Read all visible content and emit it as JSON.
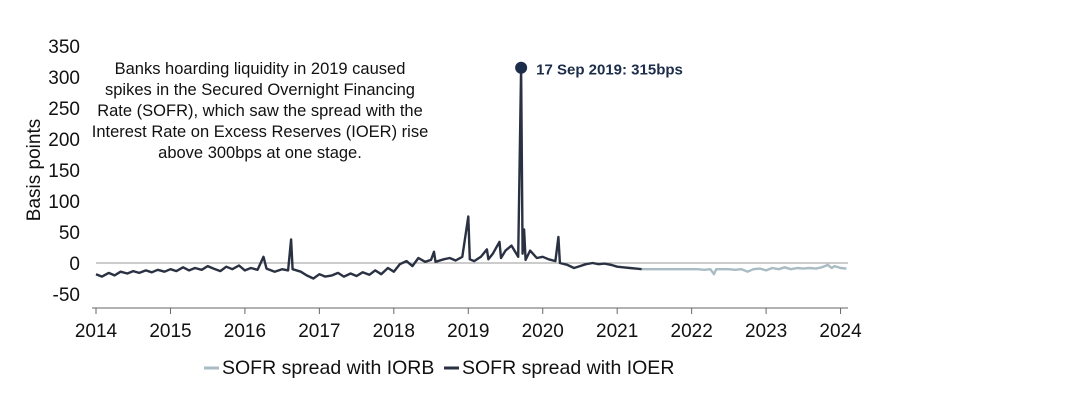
{
  "chart_data": {
    "type": "line",
    "title": "",
    "xlabel": "",
    "ylabel": "Basis points",
    "ylim": [
      -50,
      350
    ],
    "y_ticks": [
      "350",
      "300",
      "250",
      "200",
      "150",
      "100",
      "50",
      "0",
      "-50"
    ],
    "x_ticks": [
      "2014",
      "2015",
      "2016",
      "2017",
      "2018",
      "2019",
      "2020",
      "2021",
      "2022",
      "2023",
      "2024"
    ],
    "x_tick_values": [
      2014.0,
      2015.0,
      2016.0,
      2017.0,
      2018.0,
      2019.0,
      2020.0,
      2021.0,
      2022.0,
      2023.0,
      2024.0
    ],
    "xlim": [
      2014.0,
      2024.1
    ],
    "grid": false,
    "legend_position": "bottom",
    "annotation_text": [
      "Banks hoarding liquidity in 2019 caused",
      "spikes in the Secured Overnight Financing",
      "Rate (SOFR), which saw the spread with the",
      "Interest Rate on Excess Reserves (IOER) rise",
      "above 300bps at one stage."
    ],
    "peak": {
      "label": "17 Sep 2019: 315bps",
      "x": 2019.71,
      "y": 315
    },
    "series": [
      {
        "name": "SOFR spread with IOER",
        "color": "#2a3142",
        "points": [
          [
            2014.0,
            -18
          ],
          [
            2014.08,
            -22
          ],
          [
            2014.17,
            -16
          ],
          [
            2014.25,
            -20
          ],
          [
            2014.33,
            -14
          ],
          [
            2014.42,
            -17
          ],
          [
            2014.5,
            -13
          ],
          [
            2014.58,
            -16
          ],
          [
            2014.67,
            -12
          ],
          [
            2014.75,
            -15
          ],
          [
            2014.83,
            -11
          ],
          [
            2014.92,
            -14
          ],
          [
            2015.0,
            -10
          ],
          [
            2015.08,
            -13
          ],
          [
            2015.17,
            -7
          ],
          [
            2015.25,
            -12
          ],
          [
            2015.33,
            -8
          ],
          [
            2015.42,
            -11
          ],
          [
            2015.5,
            -5
          ],
          [
            2015.58,
            -9
          ],
          [
            2015.67,
            -13
          ],
          [
            2015.75,
            -6
          ],
          [
            2015.83,
            -10
          ],
          [
            2015.92,
            -4
          ],
          [
            2016.0,
            -12
          ],
          [
            2016.08,
            -8
          ],
          [
            2016.17,
            -11
          ],
          [
            2016.25,
            10
          ],
          [
            2016.29,
            -9
          ],
          [
            2016.4,
            -14
          ],
          [
            2016.5,
            -10
          ],
          [
            2016.58,
            -12
          ],
          [
            2016.62,
            38
          ],
          [
            2016.64,
            -10
          ],
          [
            2016.75,
            -14
          ],
          [
            2016.83,
            -20
          ],
          [
            2016.92,
            -25
          ],
          [
            2017.0,
            -18
          ],
          [
            2017.08,
            -22
          ],
          [
            2017.17,
            -20
          ],
          [
            2017.25,
            -16
          ],
          [
            2017.33,
            -22
          ],
          [
            2017.42,
            -17
          ],
          [
            2017.5,
            -21
          ],
          [
            2017.58,
            -15
          ],
          [
            2017.67,
            -19
          ],
          [
            2017.75,
            -12
          ],
          [
            2017.83,
            -18
          ],
          [
            2017.92,
            -8
          ],
          [
            2018.0,
            -14
          ],
          [
            2018.08,
            -2
          ],
          [
            2018.17,
            3
          ],
          [
            2018.25,
            -5
          ],
          [
            2018.33,
            8
          ],
          [
            2018.42,
            2
          ],
          [
            2018.5,
            5
          ],
          [
            2018.54,
            18
          ],
          [
            2018.56,
            2
          ],
          [
            2018.67,
            6
          ],
          [
            2018.75,
            8
          ],
          [
            2018.83,
            4
          ],
          [
            2018.92,
            10
          ],
          [
            2019.0,
            75
          ],
          [
            2019.02,
            6
          ],
          [
            2019.08,
            3
          ],
          [
            2019.17,
            10
          ],
          [
            2019.25,
            22
          ],
          [
            2019.27,
            6
          ],
          [
            2019.33,
            15
          ],
          [
            2019.42,
            34
          ],
          [
            2019.44,
            8
          ],
          [
            2019.5,
            20
          ],
          [
            2019.58,
            28
          ],
          [
            2019.67,
            10
          ],
          [
            2019.71,
            315
          ],
          [
            2019.73,
            15
          ],
          [
            2019.75,
            54
          ],
          [
            2019.77,
            5
          ],
          [
            2019.83,
            20
          ],
          [
            2019.92,
            8
          ],
          [
            2020.0,
            10
          ],
          [
            2020.08,
            6
          ],
          [
            2020.17,
            3
          ],
          [
            2020.21,
            42
          ],
          [
            2020.23,
            0
          ],
          [
            2020.33,
            -3
          ],
          [
            2020.42,
            -8
          ],
          [
            2020.5,
            -5
          ],
          [
            2020.58,
            -2
          ],
          [
            2020.67,
            0
          ],
          [
            2020.75,
            -2
          ],
          [
            2020.83,
            -1
          ],
          [
            2020.92,
            -3
          ],
          [
            2021.0,
            -6
          ],
          [
            2021.08,
            -7
          ],
          [
            2021.17,
            -8
          ],
          [
            2021.25,
            -9
          ],
          [
            2021.33,
            -10
          ]
        ]
      },
      {
        "name": "SOFR spread with IORB",
        "color": "#a9bcc3",
        "points": [
          [
            2021.33,
            -10
          ],
          [
            2021.42,
            -10
          ],
          [
            2021.5,
            -10
          ],
          [
            2021.58,
            -10
          ],
          [
            2021.67,
            -10
          ],
          [
            2021.75,
            -10
          ],
          [
            2021.83,
            -10
          ],
          [
            2021.92,
            -10
          ],
          [
            2022.0,
            -10
          ],
          [
            2022.08,
            -10
          ],
          [
            2022.17,
            -11
          ],
          [
            2022.25,
            -10
          ],
          [
            2022.3,
            -18
          ],
          [
            2022.33,
            -10
          ],
          [
            2022.42,
            -10
          ],
          [
            2022.5,
            -10
          ],
          [
            2022.58,
            -11
          ],
          [
            2022.67,
            -10
          ],
          [
            2022.75,
            -14
          ],
          [
            2022.83,
            -10
          ],
          [
            2022.92,
            -9
          ],
          [
            2023.0,
            -12
          ],
          [
            2023.08,
            -8
          ],
          [
            2023.17,
            -10
          ],
          [
            2023.25,
            -7
          ],
          [
            2023.33,
            -10
          ],
          [
            2023.42,
            -8
          ],
          [
            2023.5,
            -9
          ],
          [
            2023.58,
            -8
          ],
          [
            2023.67,
            -9
          ],
          [
            2023.75,
            -7
          ],
          [
            2023.83,
            -3
          ],
          [
            2023.88,
            -8
          ],
          [
            2023.92,
            -5
          ],
          [
            2024.0,
            -8
          ],
          [
            2024.08,
            -9
          ]
        ]
      }
    ],
    "legend": [
      {
        "name": "SOFR spread with IORB",
        "color": "#a9bcc3"
      },
      {
        "name": "SOFR spread with IOER",
        "color": "#2a3142"
      }
    ]
  }
}
